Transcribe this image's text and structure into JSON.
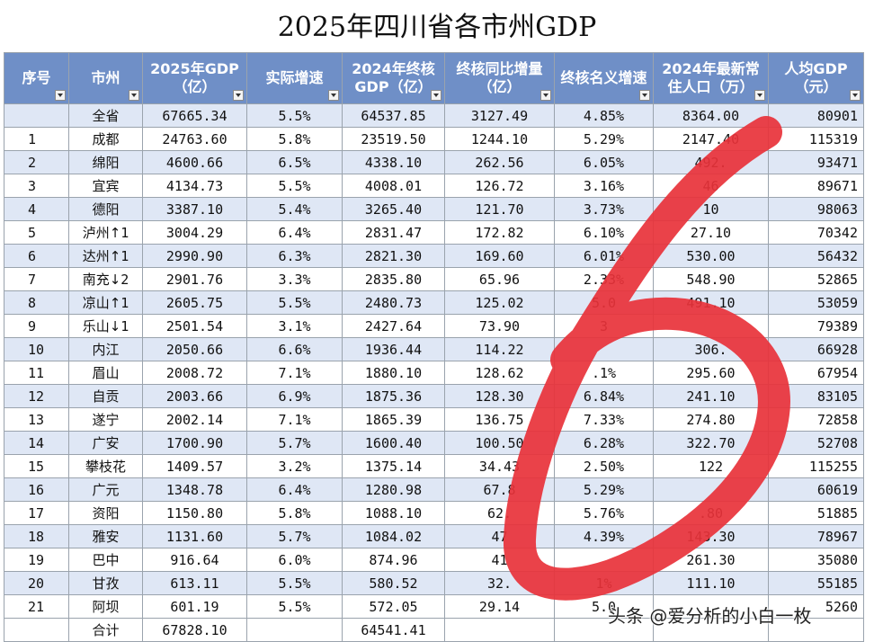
{
  "title": "2025年四川省各市州GDP",
  "header": [
    "序号",
    "市州",
    "2025年GDP（亿）",
    "实际增速",
    "2024年终核GDP（亿）",
    "终核同比增量（亿）",
    "终核名义增速",
    "2024年最新常住人口（万）",
    "人均GDP（元）"
  ],
  "rows": [
    {
      "rank": "",
      "city": "全省",
      "arrow": "",
      "move": "",
      "gdp25": "67665.34",
      "growth": "5.5%",
      "gdp24": "64537.85",
      "incr": "3127.49",
      "nominal": "4.85%",
      "pop": "8364.00",
      "per_capita": "80901"
    },
    {
      "rank": "1",
      "city": "成都",
      "arrow": "",
      "move": "",
      "gdp25": "24763.60",
      "growth": "5.8%",
      "gdp24": "23519.50",
      "incr": "1244.10",
      "nominal": "5.29%",
      "pop": "2147.40",
      "per_capita": "115319"
    },
    {
      "rank": "2",
      "city": "绵阳",
      "arrow": "",
      "move": "",
      "gdp25": "4600.66",
      "growth": "6.5%",
      "gdp24": "4338.10",
      "incr": "262.56",
      "nominal": "6.05%",
      "pop": "492.",
      "per_capita": "93471"
    },
    {
      "rank": "3",
      "city": "宜宾",
      "arrow": "",
      "move": "",
      "gdp25": "4134.73",
      "growth": "5.5%",
      "gdp24": "4008.01",
      "incr": "126.72",
      "nominal": "3.16%",
      "pop": "46",
      "per_capita": "89671"
    },
    {
      "rank": "4",
      "city": "德阳",
      "arrow": "",
      "move": "",
      "gdp25": "3387.10",
      "growth": "5.4%",
      "gdp24": "3265.40",
      "incr": "121.70",
      "nominal": "3.73%",
      "pop": "10",
      "per_capita": "98063"
    },
    {
      "rank": "5",
      "city": "泸州",
      "arrow": "↑",
      "move": "1",
      "gdp25": "3004.29",
      "growth": "6.4%",
      "gdp24": "2831.47",
      "incr": "172.82",
      "nominal": "6.10%",
      "pop": "27.10",
      "per_capita": "70342"
    },
    {
      "rank": "6",
      "city": "达州",
      "arrow": "↑",
      "move": "1",
      "gdp25": "2990.90",
      "growth": "6.3%",
      "gdp24": "2821.30",
      "incr": "169.60",
      "nominal": "6.01%",
      "pop": "530.00",
      "per_capita": "56432"
    },
    {
      "rank": "7",
      "city": "南充",
      "arrow": "↓",
      "move": "2",
      "gdp25": "2901.76",
      "growth": "3.3%",
      "gdp24": "2835.80",
      "incr": "65.96",
      "nominal": "2.33%",
      "pop": "548.90",
      "per_capita": "52865"
    },
    {
      "rank": "8",
      "city": "凉山",
      "arrow": "↑",
      "move": "1",
      "gdp25": "2605.75",
      "growth": "5.5%",
      "gdp24": "2480.73",
      "incr": "125.02",
      "nominal": "5.0",
      "pop": "491.10",
      "per_capita": "53059"
    },
    {
      "rank": "9",
      "city": "乐山",
      "arrow": "↓",
      "move": "1",
      "gdp25": "2501.54",
      "growth": "3.1%",
      "gdp24": "2427.64",
      "incr": "73.90",
      "nominal": "3",
      "pop": "",
      "per_capita": "79389"
    },
    {
      "rank": "10",
      "city": "内江",
      "arrow": "",
      "move": "",
      "gdp25": "2050.66",
      "growth": "6.6%",
      "gdp24": "1936.44",
      "incr": "114.22",
      "nominal": "",
      "pop": "306.",
      "per_capita": "66928"
    },
    {
      "rank": "11",
      "city": "眉山",
      "arrow": "",
      "move": "",
      "gdp25": "2008.72",
      "growth": "7.1%",
      "gdp24": "1880.10",
      "incr": "128.62",
      "nominal": ".1%",
      "pop": "295.60",
      "per_capita": "67954"
    },
    {
      "rank": "12",
      "city": "自贡",
      "arrow": "",
      "move": "",
      "gdp25": "2003.66",
      "growth": "6.9%",
      "gdp24": "1875.36",
      "incr": "128.30",
      "nominal": "6.84%",
      "pop": "241.10",
      "per_capita": "83105"
    },
    {
      "rank": "13",
      "city": "遂宁",
      "arrow": "",
      "move": "",
      "gdp25": "2002.14",
      "growth": "7.1%",
      "gdp24": "1865.39",
      "incr": "136.75",
      "nominal": "7.33%",
      "pop": "274.80",
      "per_capita": "72858"
    },
    {
      "rank": "14",
      "city": "广安",
      "arrow": "",
      "move": "",
      "gdp25": "1700.90",
      "growth": "5.7%",
      "gdp24": "1600.40",
      "incr": "100.50",
      "nominal": "6.28%",
      "pop": "322.70",
      "per_capita": "52708"
    },
    {
      "rank": "15",
      "city": "攀枝花",
      "arrow": "",
      "move": "",
      "gdp25": "1409.57",
      "growth": "3.2%",
      "gdp24": "1375.14",
      "incr": "34.43",
      "nominal": "2.50%",
      "pop": "122",
      "per_capita": "115255"
    },
    {
      "rank": "16",
      "city": "广元",
      "arrow": "",
      "move": "",
      "gdp25": "1348.78",
      "growth": "6.4%",
      "gdp24": "1280.98",
      "incr": "67.8",
      "nominal": "5.29%",
      "pop": "",
      "per_capita": "60619"
    },
    {
      "rank": "17",
      "city": "资阳",
      "arrow": "",
      "move": "",
      "gdp25": "1150.80",
      "growth": "5.8%",
      "gdp24": "1088.10",
      "incr": "62.",
      "nominal": "5.76%",
      "pop": ".80",
      "per_capita": "51885"
    },
    {
      "rank": "18",
      "city": "雅安",
      "arrow": "",
      "move": "",
      "gdp25": "1131.60",
      "growth": "5.7%",
      "gdp24": "1084.02",
      "incr": "47",
      "nominal": "4.39%",
      "pop": "143.30",
      "per_capita": "78967"
    },
    {
      "rank": "19",
      "city": "巴中",
      "arrow": "",
      "move": "",
      "gdp25": "916.64",
      "growth": "6.0%",
      "gdp24": "874.96",
      "incr": "41",
      "nominal": "",
      "pop": "261.30",
      "per_capita": "35080"
    },
    {
      "rank": "20",
      "city": "甘孜",
      "arrow": "",
      "move": "",
      "gdp25": "613.11",
      "growth": "5.5%",
      "gdp24": "580.52",
      "incr": "32.",
      "nominal": "1%",
      "pop": "111.10",
      "per_capita": "55185"
    },
    {
      "rank": "21",
      "city": "阿坝",
      "arrow": "",
      "move": "",
      "gdp25": "601.19",
      "growth": "5.5%",
      "gdp24": "572.05",
      "incr": "29.14",
      "nominal": "5.0",
      "pop": "",
      "per_capita": "5260"
    }
  ],
  "total": {
    "label": "合计",
    "gdp25": "67828.10",
    "gdp24": "64541.41"
  },
  "watermark": "头条 @爱分析的小白一枚",
  "overlay": {
    "stroke_color": "#e8323a"
  }
}
